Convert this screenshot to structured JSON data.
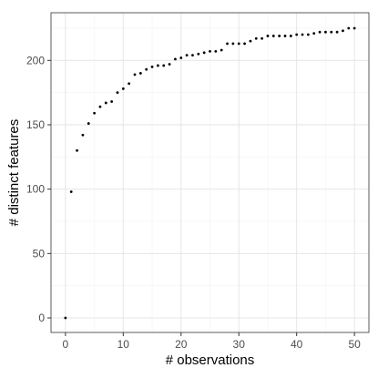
{
  "chart_data": {
    "type": "scatter",
    "title": "",
    "xlabel": "# observations",
    "ylabel": "# distinct features",
    "xlim": [
      -2.5,
      52.5
    ],
    "ylim": [
      -11.3,
      237
    ],
    "xticks": [
      0,
      10,
      20,
      30,
      40,
      50
    ],
    "yticks": [
      0,
      50,
      100,
      150,
      200
    ],
    "xtick_labels": [
      "0",
      "10",
      "20",
      "30",
      "40",
      "50"
    ],
    "ytick_labels": [
      "0",
      "50",
      "100",
      "150",
      "200"
    ],
    "grid": true,
    "point_color": "#000000",
    "series": [
      {
        "x": [
          0,
          1,
          2,
          3,
          4,
          5,
          6,
          7,
          8,
          9,
          10,
          11,
          12,
          13,
          14,
          15,
          16,
          17,
          18,
          19,
          20,
          21,
          22,
          23,
          24,
          25,
          26,
          27,
          28,
          29,
          30,
          31,
          32,
          33,
          34,
          35,
          36,
          37,
          38,
          39,
          40,
          41,
          42,
          43,
          44,
          45,
          46,
          47,
          48,
          49,
          50
        ],
        "values": [
          0,
          98,
          130,
          142,
          151,
          159,
          164,
          167,
          168,
          175,
          178,
          182,
          189,
          190,
          193,
          195,
          196,
          196,
          197,
          201,
          202,
          204,
          204,
          205,
          206,
          207,
          207,
          208,
          213,
          213,
          213,
          213,
          215,
          217,
          217,
          219,
          219,
          219,
          219,
          219,
          220,
          220,
          220,
          221,
          222,
          222,
          222,
          222,
          223,
          225,
          225
        ]
      }
    ]
  }
}
